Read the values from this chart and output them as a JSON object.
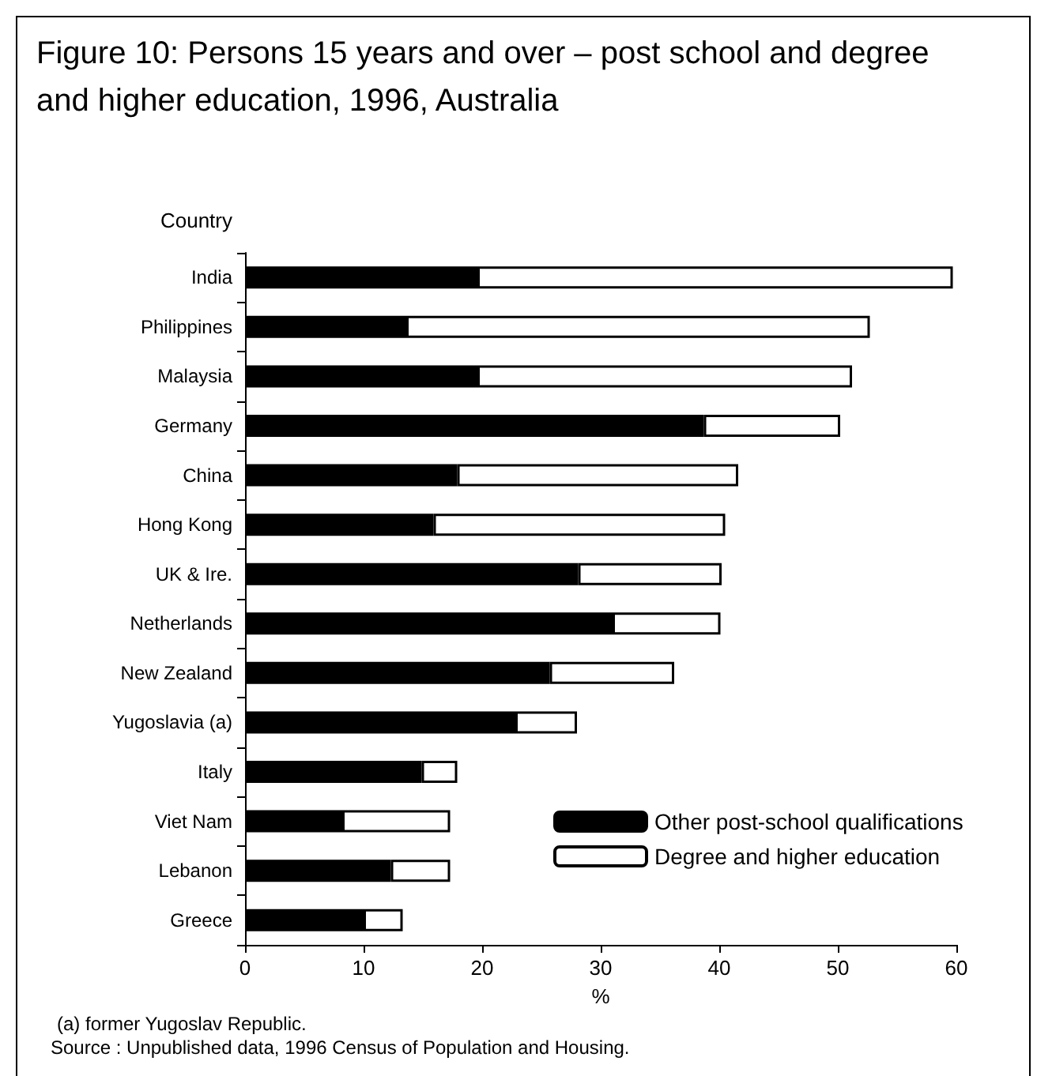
{
  "chart_data": {
    "type": "bar",
    "orientation": "horizontal",
    "stacked": true,
    "title": "Figure 10: Persons 15 years and over – post school and degree and higher education, 1996, Australia",
    "ylabel": "Country",
    "xlabel": "%",
    "categories": [
      "India",
      "Philippines",
      "Malaysia",
      "Germany",
      "China",
      "Hong Kong",
      "UK & Ire.",
      "Netherlands",
      "New Zealand",
      "Yugoslavia (a)",
      "Italy",
      "Viet Nam",
      "Lebanon",
      "Greece"
    ],
    "series": [
      {
        "name": "Other post-school qualifications",
        "color": "#000000",
        "values": [
          19.6,
          13.6,
          19.6,
          38.7,
          17.9,
          15.9,
          28.1,
          31.0,
          25.7,
          22.8,
          14.9,
          8.2,
          12.3,
          10.0
        ]
      },
      {
        "name": "Degree and higher education",
        "color": "#ffffff",
        "values": [
          40.1,
          39.1,
          31.6,
          11.5,
          23.7,
          24.6,
          12.1,
          9.1,
          10.5,
          5.2,
          3.0,
          9.1,
          5.0,
          3.3
        ]
      }
    ],
    "xlim": [
      0,
      60
    ],
    "xticks": [
      0,
      10,
      20,
      30,
      40,
      50,
      60
    ],
    "grid": false,
    "legend": "bottom right",
    "annotations": [
      "(a) former Yugoslav Republic.",
      "Source : Unpublished data, 1996 Census of Population and Housing."
    ]
  }
}
